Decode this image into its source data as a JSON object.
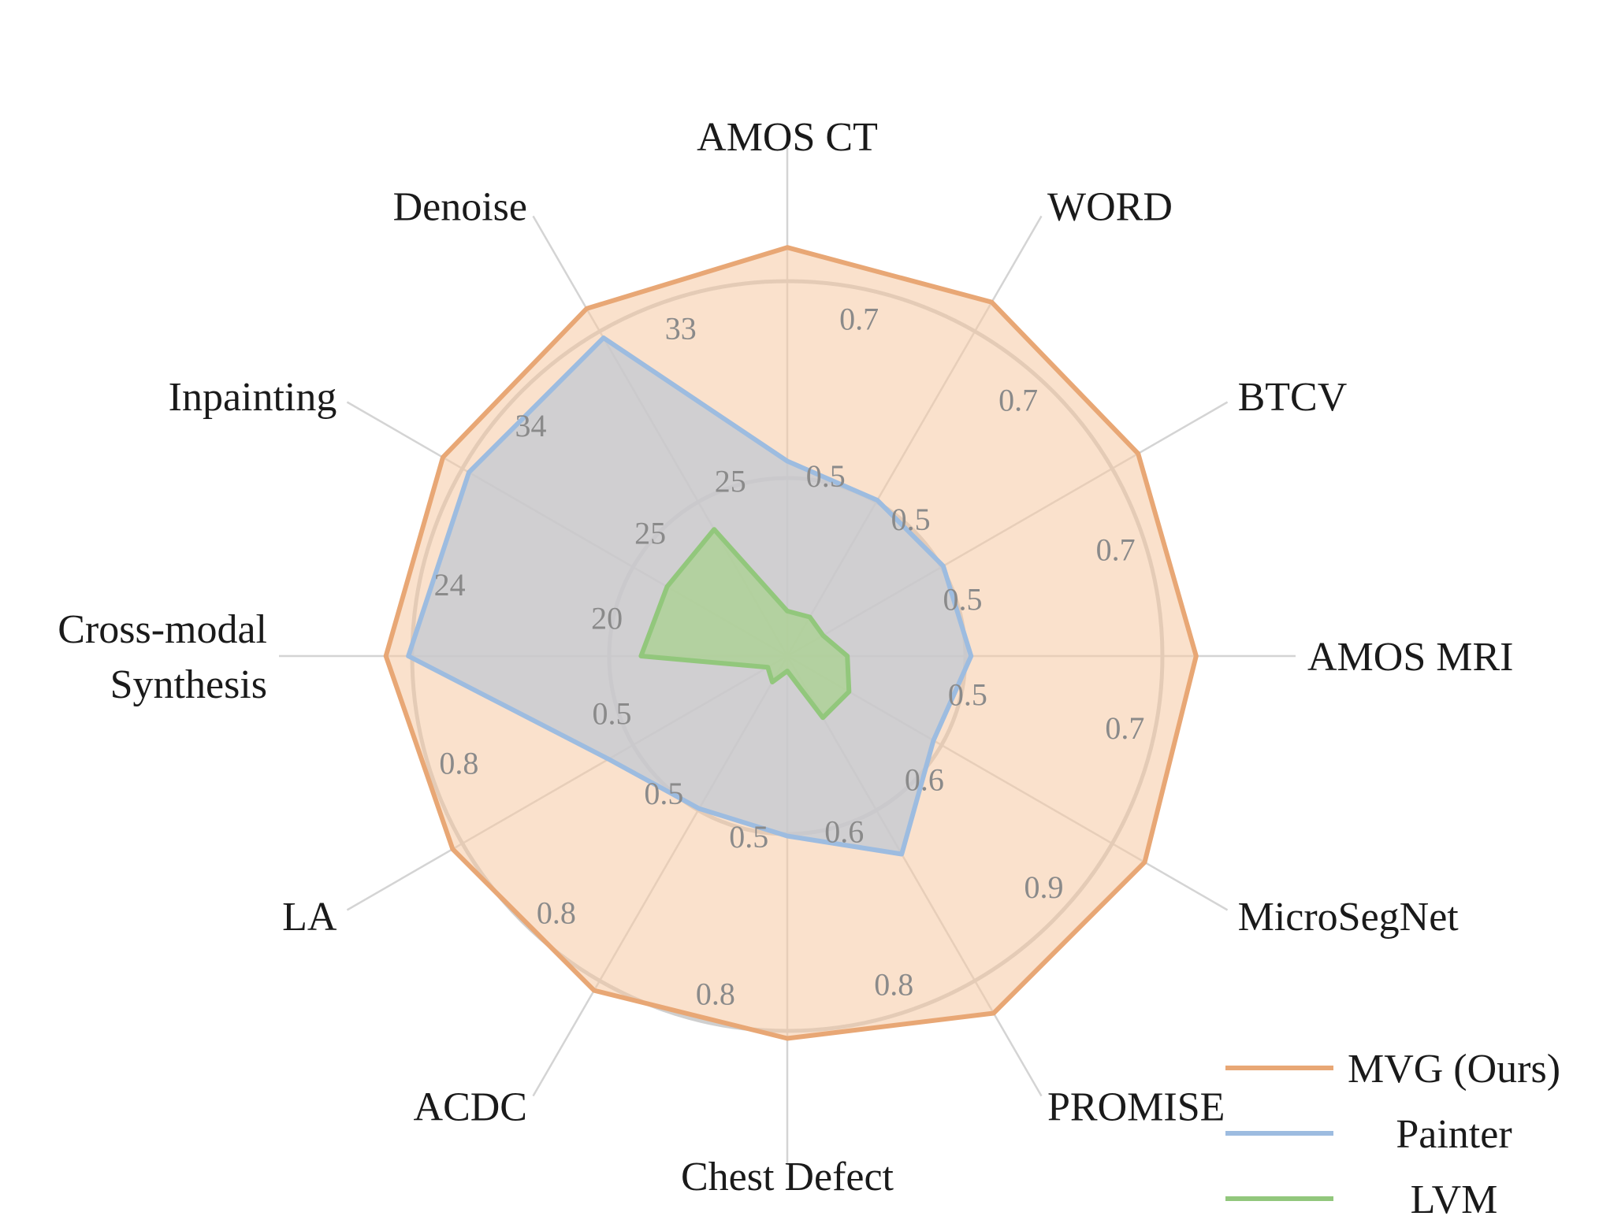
{
  "chart_data": {
    "type": "radar",
    "axes": [
      {
        "name": "AMOS CT",
        "lines": [
          "AMOS CT"
        ]
      },
      {
        "name": "WORD",
        "lines": [
          "WORD"
        ]
      },
      {
        "name": "BTCV",
        "lines": [
          "BTCV"
        ]
      },
      {
        "name": "AMOS MRI",
        "lines": [
          "AMOS MRI"
        ]
      },
      {
        "name": "MicroSegNet",
        "lines": [
          "MicroSegNet"
        ]
      },
      {
        "name": "PROMISE",
        "lines": [
          "PROMISE"
        ]
      },
      {
        "name": "Chest Defect",
        "lines": [
          "Chest Defect"
        ]
      },
      {
        "name": "ACDC",
        "lines": [
          "ACDC"
        ]
      },
      {
        "name": "LA",
        "lines": [
          "LA"
        ]
      },
      {
        "name": "Cross-modal Synthesis",
        "lines": [
          "Cross-modal",
          "Synthesis"
        ]
      },
      {
        "name": "Inpainting",
        "lines": [
          "Inpainting"
        ]
      },
      {
        "name": "Denoise",
        "lines": [
          "Denoise"
        ]
      }
    ],
    "inner_ring_labels": [
      "0.5",
      "0.5",
      "0.5",
      "0.5",
      "0.6",
      "0.6",
      "0.5",
      "0.5",
      "0.5",
      "20",
      "25",
      "25"
    ],
    "outer_ring_labels": [
      "0.7",
      "0.7",
      "0.7",
      "0.7",
      "0.9",
      "0.8",
      "0.8",
      "0.8",
      "0.8",
      "24",
      "34",
      "33"
    ],
    "series": [
      {
        "name": "MVG (Ours)",
        "color": "#e8a775",
        "fill": "#f5c9a2",
        "fill_opacity": 0.55,
        "values": [
          1.09,
          1.09,
          1.08,
          1.09,
          1.1,
          1.1,
          1.02,
          1.03,
          1.03,
          1.07,
          1.06,
          1.07
        ]
      },
      {
        "name": "Painter",
        "color": "#9dbce0",
        "fill": "#c2c8d3",
        "fill_opacity": 0.75,
        "values": [
          0.52,
          0.48,
          0.48,
          0.49,
          0.45,
          0.61,
          0.48,
          0.47,
          0.55,
          1.01,
          0.98,
          0.98
        ]
      },
      {
        "name": "LVM",
        "color": "#92c77c",
        "fill": "#a9d28f",
        "fill_opacity": 0.75,
        "values": [
          0.12,
          0.12,
          0.11,
          0.16,
          0.19,
          0.19,
          0.04,
          0.08,
          0.06,
          0.39,
          0.37,
          0.39
        ]
      }
    ],
    "legend_position": "bottom-right"
  }
}
